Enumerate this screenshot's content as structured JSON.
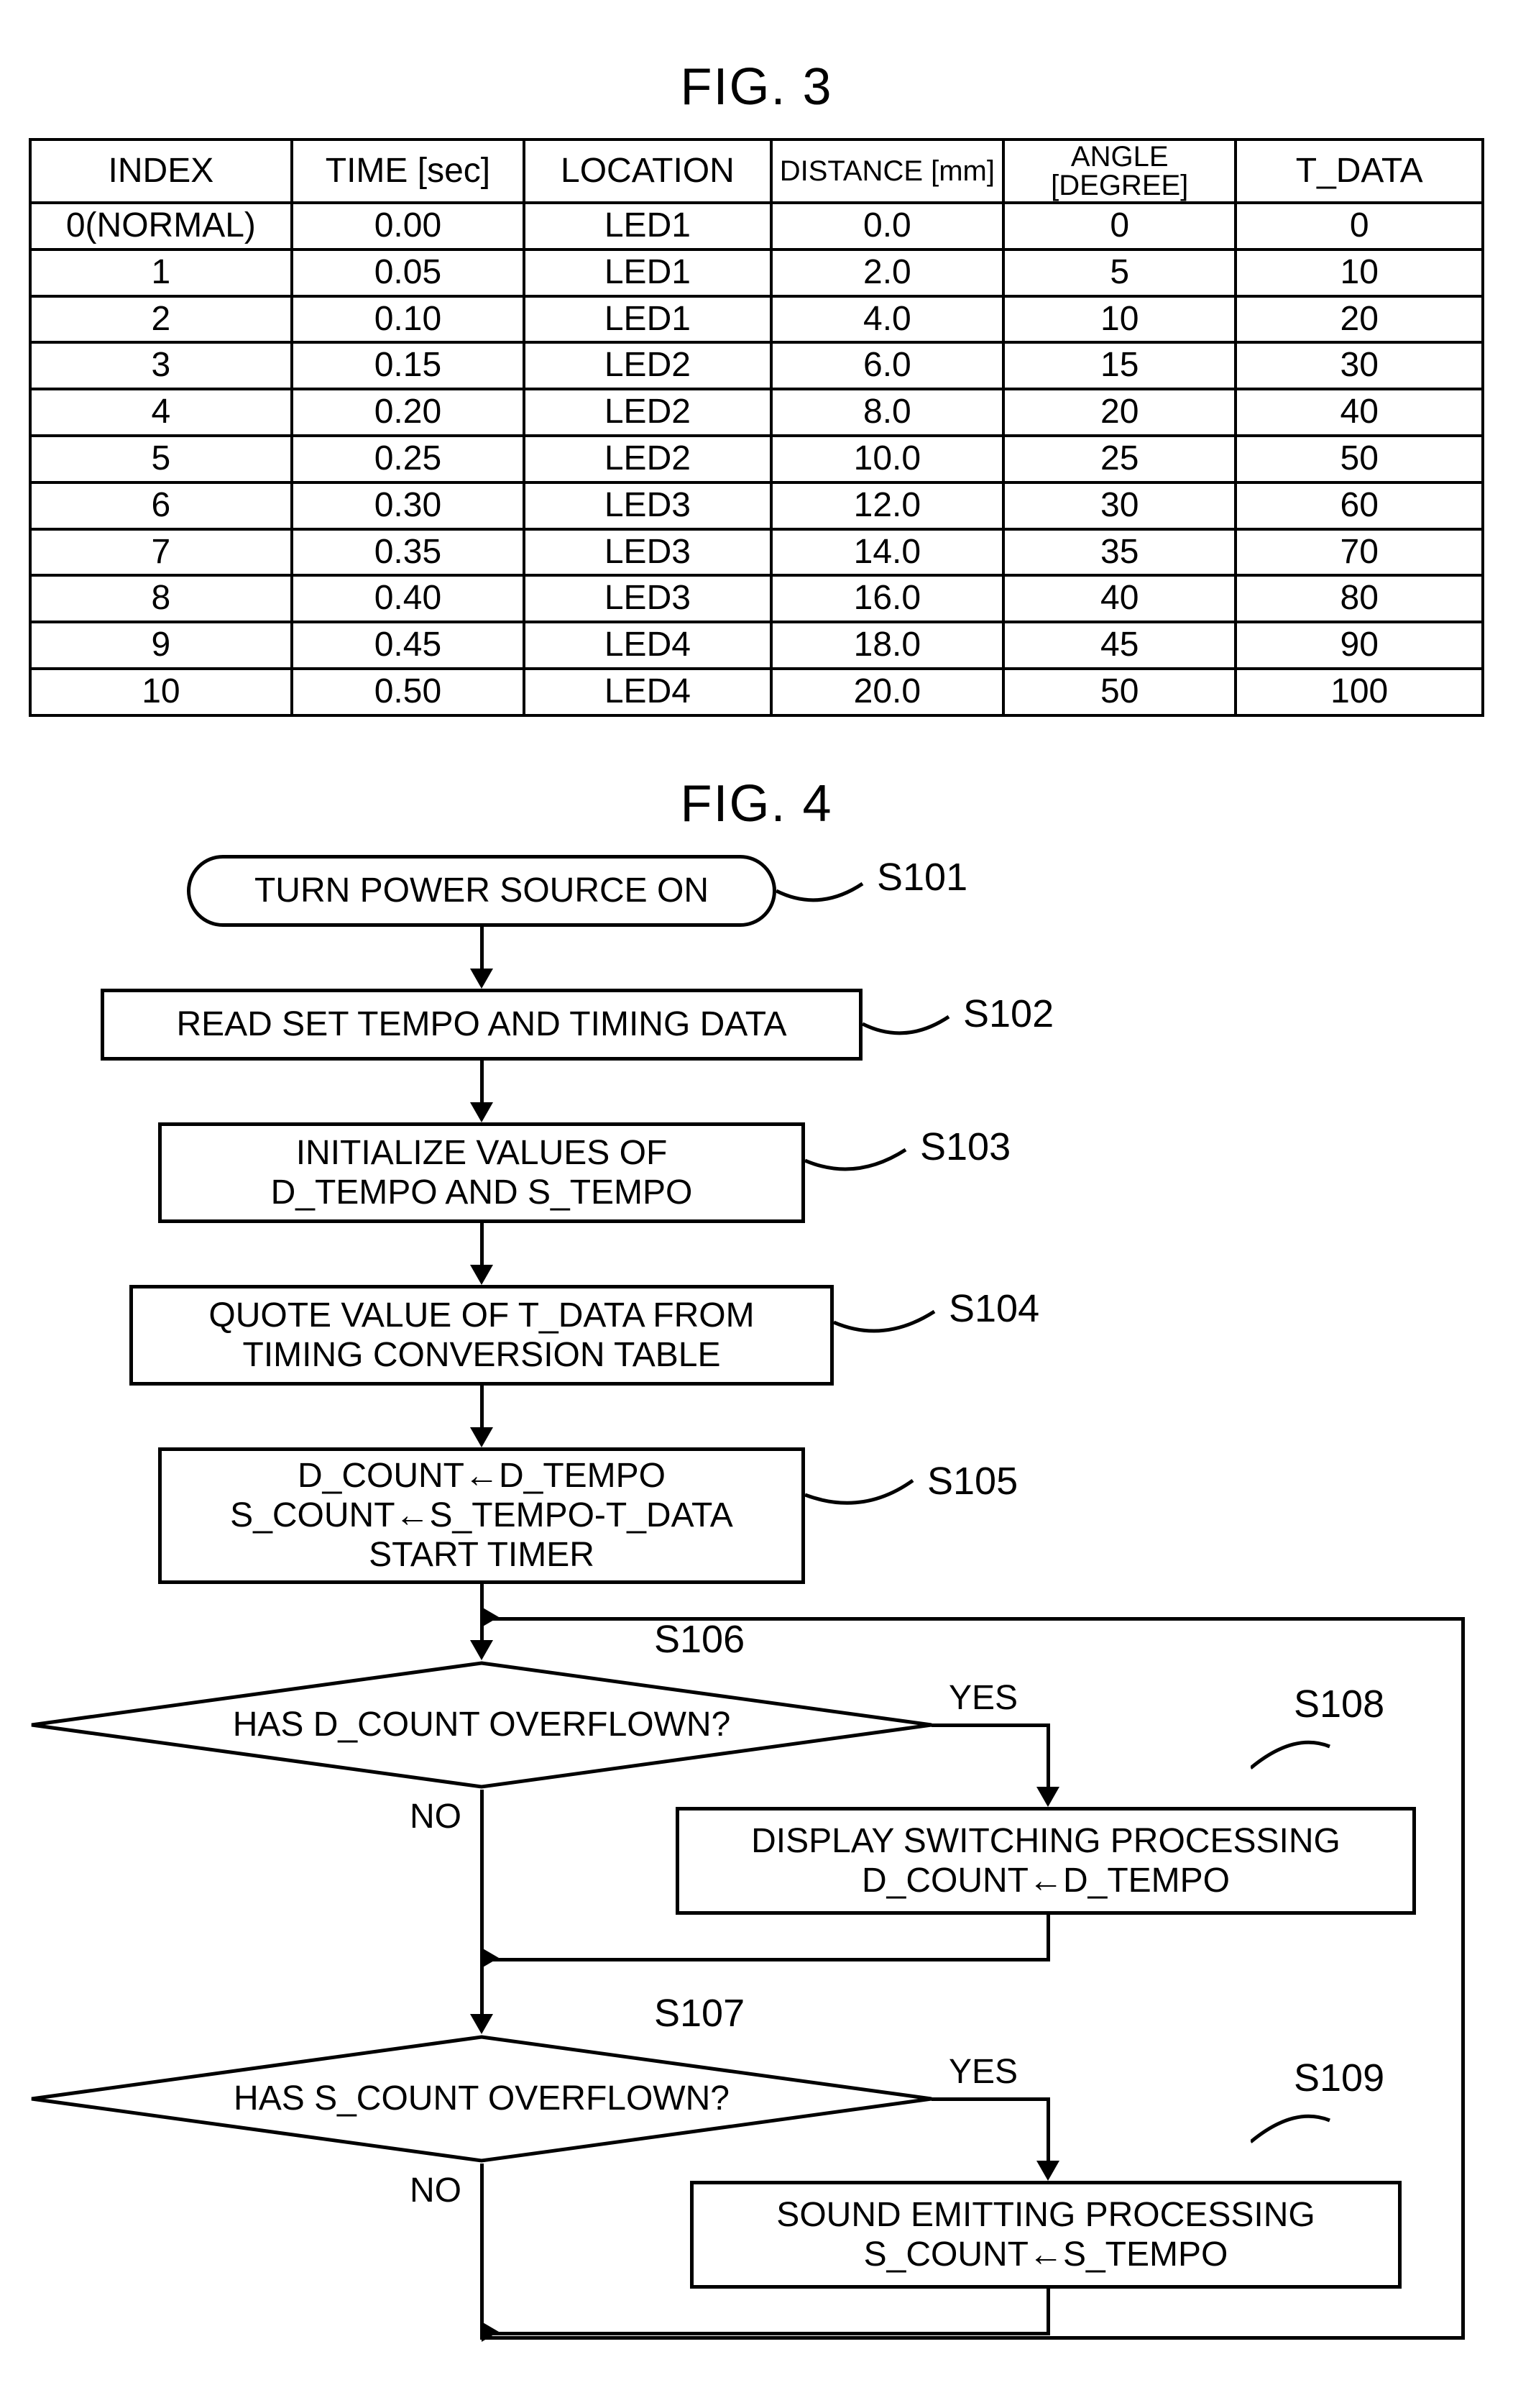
{
  "fig3": {
    "title": "FIG. 3",
    "columns": [
      "INDEX",
      "TIME [sec]",
      "LOCATION",
      "DISTANCE\n[mm]",
      "ANGLE\n[DEGREE]",
      "T_DATA"
    ],
    "rows": [
      [
        "0(NORMAL)",
        "0.00",
        "LED1",
        "0.0",
        "0",
        "0"
      ],
      [
        "1",
        "0.05",
        "LED1",
        "2.0",
        "5",
        "10"
      ],
      [
        "2",
        "0.10",
        "LED1",
        "4.0",
        "10",
        "20"
      ],
      [
        "3",
        "0.15",
        "LED2",
        "6.0",
        "15",
        "30"
      ],
      [
        "4",
        "0.20",
        "LED2",
        "8.0",
        "20",
        "40"
      ],
      [
        "5",
        "0.25",
        "LED2",
        "10.0",
        "25",
        "50"
      ],
      [
        "6",
        "0.30",
        "LED3",
        "12.0",
        "30",
        "60"
      ],
      [
        "7",
        "0.35",
        "LED3",
        "14.0",
        "35",
        "70"
      ],
      [
        "8",
        "0.40",
        "LED3",
        "16.0",
        "40",
        "80"
      ],
      [
        "9",
        "0.45",
        "LED4",
        "18.0",
        "45",
        "90"
      ],
      [
        "10",
        "0.50",
        "LED4",
        "20.0",
        "50",
        "100"
      ]
    ],
    "col_widths_pct": [
      18,
      16,
      17,
      16,
      16,
      17
    ]
  },
  "fig4": {
    "title": "FIG. 4",
    "steps": {
      "s101": {
        "label": "S101",
        "text": "TURN POWER SOURCE ON"
      },
      "s102": {
        "label": "S102",
        "text": "READ SET TEMPO AND TIMING DATA"
      },
      "s103": {
        "label": "S103",
        "text": "INITIALIZE VALUES OF\nD_TEMPO AND S_TEMPO"
      },
      "s104": {
        "label": "S104",
        "text": "QUOTE VALUE OF T_DATA FROM\nTIMING CONVERSION TABLE"
      },
      "s105": {
        "label": "S105",
        "text": "D_COUNT←D_TEMPO\nS_COUNT←S_TEMPO-T_DATA\nSTART TIMER"
      },
      "s106": {
        "label": "S106",
        "text": "HAS D_COUNT OVERFLOWN?"
      },
      "s108": {
        "label": "S108",
        "text": "DISPLAY SWITCHING PROCESSING\nD_COUNT←D_TEMPO"
      },
      "s107": {
        "label": "S107",
        "text": "HAS S_COUNT OVERFLOWN?"
      },
      "s109": {
        "label": "S109",
        "text": "SOUND EMITTING PROCESSING\nS_COUNT←S_TEMPO"
      }
    },
    "labels": {
      "yes": "YES",
      "no": "NO"
    },
    "colors": {
      "stroke": "#000000",
      "bg": "#ffffff"
    }
  }
}
